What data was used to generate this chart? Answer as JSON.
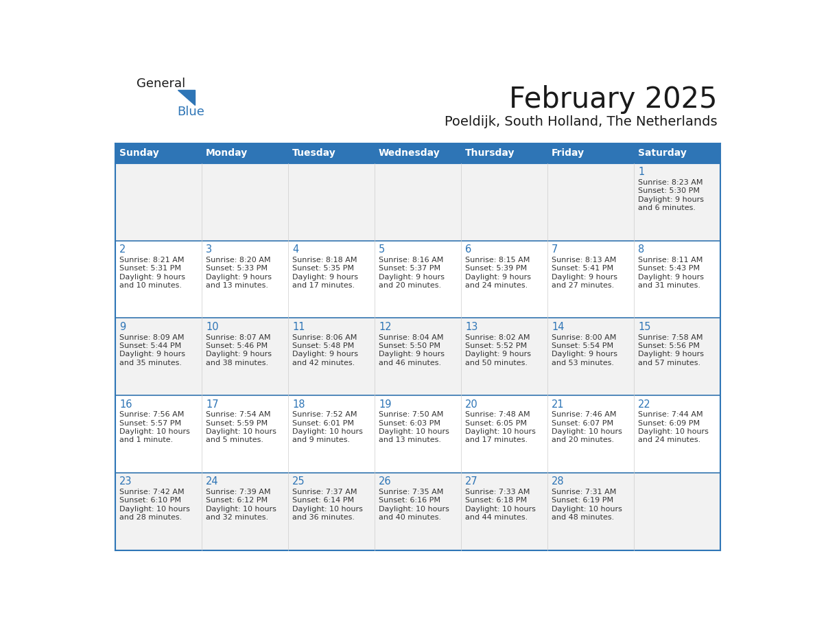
{
  "title": "February 2025",
  "subtitle": "Poeldijk, South Holland, The Netherlands",
  "days_of_week": [
    "Sunday",
    "Monday",
    "Tuesday",
    "Wednesday",
    "Thursday",
    "Friday",
    "Saturday"
  ],
  "header_bg": "#2E75B6",
  "header_text": "#FFFFFF",
  "border_color": "#2E75B6",
  "cell_border_color": "#AAAAAA",
  "row_separator_color": "#3375B0",
  "cell_bg_odd": "#F2F2F2",
  "cell_bg_even": "#FFFFFF",
  "text_color": "#333333",
  "day_num_color": "#2E75B6",
  "logo_general_color": "#1a1a1a",
  "logo_blue_color": "#2E75B6",
  "calendar_data": [
    [
      {
        "day": null,
        "info": ""
      },
      {
        "day": null,
        "info": ""
      },
      {
        "day": null,
        "info": ""
      },
      {
        "day": null,
        "info": ""
      },
      {
        "day": null,
        "info": ""
      },
      {
        "day": null,
        "info": ""
      },
      {
        "day": 1,
        "info": "Sunrise: 8:23 AM\nSunset: 5:30 PM\nDaylight: 9 hours\nand 6 minutes."
      }
    ],
    [
      {
        "day": 2,
        "info": "Sunrise: 8:21 AM\nSunset: 5:31 PM\nDaylight: 9 hours\nand 10 minutes."
      },
      {
        "day": 3,
        "info": "Sunrise: 8:20 AM\nSunset: 5:33 PM\nDaylight: 9 hours\nand 13 minutes."
      },
      {
        "day": 4,
        "info": "Sunrise: 8:18 AM\nSunset: 5:35 PM\nDaylight: 9 hours\nand 17 minutes."
      },
      {
        "day": 5,
        "info": "Sunrise: 8:16 AM\nSunset: 5:37 PM\nDaylight: 9 hours\nand 20 minutes."
      },
      {
        "day": 6,
        "info": "Sunrise: 8:15 AM\nSunset: 5:39 PM\nDaylight: 9 hours\nand 24 minutes."
      },
      {
        "day": 7,
        "info": "Sunrise: 8:13 AM\nSunset: 5:41 PM\nDaylight: 9 hours\nand 27 minutes."
      },
      {
        "day": 8,
        "info": "Sunrise: 8:11 AM\nSunset: 5:43 PM\nDaylight: 9 hours\nand 31 minutes."
      }
    ],
    [
      {
        "day": 9,
        "info": "Sunrise: 8:09 AM\nSunset: 5:44 PM\nDaylight: 9 hours\nand 35 minutes."
      },
      {
        "day": 10,
        "info": "Sunrise: 8:07 AM\nSunset: 5:46 PM\nDaylight: 9 hours\nand 38 minutes."
      },
      {
        "day": 11,
        "info": "Sunrise: 8:06 AM\nSunset: 5:48 PM\nDaylight: 9 hours\nand 42 minutes."
      },
      {
        "day": 12,
        "info": "Sunrise: 8:04 AM\nSunset: 5:50 PM\nDaylight: 9 hours\nand 46 minutes."
      },
      {
        "day": 13,
        "info": "Sunrise: 8:02 AM\nSunset: 5:52 PM\nDaylight: 9 hours\nand 50 minutes."
      },
      {
        "day": 14,
        "info": "Sunrise: 8:00 AM\nSunset: 5:54 PM\nDaylight: 9 hours\nand 53 minutes."
      },
      {
        "day": 15,
        "info": "Sunrise: 7:58 AM\nSunset: 5:56 PM\nDaylight: 9 hours\nand 57 minutes."
      }
    ],
    [
      {
        "day": 16,
        "info": "Sunrise: 7:56 AM\nSunset: 5:57 PM\nDaylight: 10 hours\nand 1 minute."
      },
      {
        "day": 17,
        "info": "Sunrise: 7:54 AM\nSunset: 5:59 PM\nDaylight: 10 hours\nand 5 minutes."
      },
      {
        "day": 18,
        "info": "Sunrise: 7:52 AM\nSunset: 6:01 PM\nDaylight: 10 hours\nand 9 minutes."
      },
      {
        "day": 19,
        "info": "Sunrise: 7:50 AM\nSunset: 6:03 PM\nDaylight: 10 hours\nand 13 minutes."
      },
      {
        "day": 20,
        "info": "Sunrise: 7:48 AM\nSunset: 6:05 PM\nDaylight: 10 hours\nand 17 minutes."
      },
      {
        "day": 21,
        "info": "Sunrise: 7:46 AM\nSunset: 6:07 PM\nDaylight: 10 hours\nand 20 minutes."
      },
      {
        "day": 22,
        "info": "Sunrise: 7:44 AM\nSunset: 6:09 PM\nDaylight: 10 hours\nand 24 minutes."
      }
    ],
    [
      {
        "day": 23,
        "info": "Sunrise: 7:42 AM\nSunset: 6:10 PM\nDaylight: 10 hours\nand 28 minutes."
      },
      {
        "day": 24,
        "info": "Sunrise: 7:39 AM\nSunset: 6:12 PM\nDaylight: 10 hours\nand 32 minutes."
      },
      {
        "day": 25,
        "info": "Sunrise: 7:37 AM\nSunset: 6:14 PM\nDaylight: 10 hours\nand 36 minutes."
      },
      {
        "day": 26,
        "info": "Sunrise: 7:35 AM\nSunset: 6:16 PM\nDaylight: 10 hours\nand 40 minutes."
      },
      {
        "day": 27,
        "info": "Sunrise: 7:33 AM\nSunset: 6:18 PM\nDaylight: 10 hours\nand 44 minutes."
      },
      {
        "day": 28,
        "info": "Sunrise: 7:31 AM\nSunset: 6:19 PM\nDaylight: 10 hours\nand 48 minutes."
      },
      {
        "day": null,
        "info": ""
      }
    ]
  ]
}
